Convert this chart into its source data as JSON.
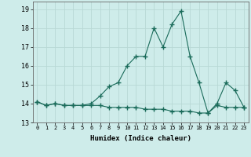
{
  "xlabel": "Humidex (Indice chaleur)",
  "x": [
    0,
    1,
    2,
    3,
    4,
    5,
    6,
    7,
    8,
    9,
    10,
    11,
    12,
    13,
    14,
    15,
    16,
    17,
    18,
    19,
    20,
    21,
    22,
    23
  ],
  "line1": [
    14.1,
    13.9,
    14.0,
    13.9,
    13.9,
    13.9,
    14.0,
    14.4,
    14.9,
    15.1,
    16.0,
    16.5,
    16.5,
    18.0,
    17.0,
    18.2,
    18.9,
    16.5,
    15.1,
    13.5,
    14.0,
    15.1,
    14.7,
    13.8
  ],
  "line2": [
    14.1,
    13.9,
    14.0,
    13.9,
    13.9,
    13.9,
    13.9,
    13.9,
    13.8,
    13.8,
    13.8,
    13.8,
    13.7,
    13.7,
    13.7,
    13.6,
    13.6,
    13.6,
    13.5,
    13.5,
    13.9,
    13.8,
    13.8,
    13.8
  ],
  "line_color": "#1a6b5a",
  "bg_color": "#ceecea",
  "grid_color": "#b8d8d5",
  "ylim": [
    13.0,
    19.4
  ],
  "yticks": [
    13,
    14,
    15,
    16,
    17,
    18,
    19
  ],
  "xlim": [
    -0.5,
    23.5
  ]
}
